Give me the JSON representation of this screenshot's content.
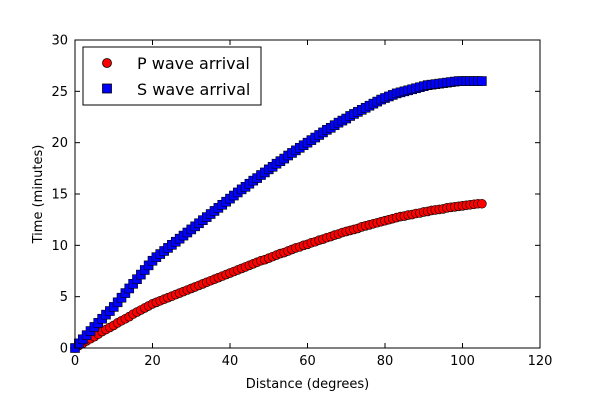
{
  "chart_data": {
    "type": "scatter",
    "title": "",
    "xlabel": "Distance (degrees)",
    "ylabel": "Time (minutes)",
    "xlim": [
      0,
      120
    ],
    "ylim": [
      0,
      30
    ],
    "xticks": [
      0,
      20,
      40,
      60,
      80,
      100,
      120
    ],
    "yticks": [
      0,
      5,
      10,
      15,
      20,
      25,
      30
    ],
    "xtick_labels": [
      "0",
      "20",
      "40",
      "60",
      "80",
      "100",
      "120"
    ],
    "ytick_labels": [
      "0",
      "5",
      "10",
      "15",
      "20",
      "25",
      "30"
    ],
    "grid": false,
    "legend_position": "top-left",
    "series": [
      {
        "name": "P wave arrival",
        "marker": "circle",
        "color": "#ff0000",
        "x": [
          0,
          1,
          2,
          3,
          4,
          5,
          6,
          7,
          8,
          9,
          10,
          11,
          12,
          13,
          14,
          15,
          16,
          17,
          18,
          19,
          20,
          21,
          22,
          23,
          24,
          25,
          26,
          27,
          28,
          29,
          30,
          31,
          32,
          33,
          34,
          35,
          36,
          37,
          38,
          39,
          40,
          41,
          42,
          43,
          44,
          45,
          46,
          47,
          48,
          49,
          50,
          51,
          52,
          53,
          54,
          55,
          56,
          57,
          58,
          59,
          60,
          61,
          62,
          63,
          64,
          65,
          66,
          67,
          68,
          69,
          70,
          71,
          72,
          73,
          74,
          75,
          76,
          77,
          78,
          79,
          80,
          81,
          82,
          83,
          84,
          85,
          86,
          87,
          88,
          89,
          90,
          91,
          92,
          93,
          94,
          95,
          96,
          97,
          98,
          99,
          100,
          101,
          102,
          103,
          104,
          105
        ],
        "y": [
          0.0,
          0.25,
          0.45,
          0.7,
          0.9,
          1.1,
          1.35,
          1.6,
          1.8,
          2.0,
          2.2,
          2.45,
          2.65,
          2.85,
          3.05,
          3.3,
          3.5,
          3.7,
          3.9,
          4.1,
          4.3,
          4.45,
          4.6,
          4.75,
          4.9,
          5.05,
          5.2,
          5.35,
          5.5,
          5.65,
          5.8,
          5.95,
          6.1,
          6.25,
          6.4,
          6.55,
          6.7,
          6.85,
          7.0,
          7.15,
          7.3,
          7.45,
          7.6,
          7.75,
          7.9,
          8.05,
          8.2,
          8.35,
          8.5,
          8.6,
          8.75,
          8.9,
          9.05,
          9.2,
          9.3,
          9.45,
          9.6,
          9.75,
          9.85,
          10.0,
          10.1,
          10.25,
          10.35,
          10.5,
          10.6,
          10.75,
          10.85,
          11.0,
          11.1,
          11.25,
          11.35,
          11.45,
          11.55,
          11.65,
          11.8,
          11.9,
          12.0,
          12.1,
          12.2,
          12.3,
          12.4,
          12.5,
          12.6,
          12.7,
          12.8,
          12.85,
          12.95,
          13.0,
          13.1,
          13.15,
          13.25,
          13.3,
          13.4,
          13.45,
          13.5,
          13.55,
          13.65,
          13.7,
          13.75,
          13.8,
          13.85,
          13.9,
          13.95,
          14.0,
          14.05,
          14.05
        ]
      },
      {
        "name": "S wave arrival",
        "marker": "square",
        "color": "#0000ff",
        "x": [
          0,
          1,
          2,
          3,
          4,
          5,
          6,
          7,
          8,
          9,
          10,
          11,
          12,
          13,
          14,
          15,
          16,
          17,
          18,
          19,
          20,
          21,
          22,
          23,
          24,
          25,
          26,
          27,
          28,
          29,
          30,
          31,
          32,
          33,
          34,
          35,
          36,
          37,
          38,
          39,
          40,
          41,
          42,
          43,
          44,
          45,
          46,
          47,
          48,
          49,
          50,
          51,
          52,
          53,
          54,
          55,
          56,
          57,
          58,
          59,
          60,
          61,
          62,
          63,
          64,
          65,
          66,
          67,
          68,
          69,
          70,
          71,
          72,
          73,
          74,
          75,
          76,
          77,
          78,
          79,
          80,
          81,
          82,
          83,
          84,
          85,
          86,
          87,
          88,
          89,
          90,
          91,
          92,
          93,
          94,
          95,
          96,
          97,
          98,
          99,
          100,
          101,
          102,
          103,
          104,
          105
        ],
        "y": [
          0.0,
          0.45,
          0.85,
          1.25,
          1.65,
          2.05,
          2.45,
          2.85,
          3.25,
          3.6,
          4.0,
          4.45,
          4.9,
          5.35,
          5.8,
          6.25,
          6.7,
          7.15,
          7.6,
          8.05,
          8.5,
          8.85,
          9.15,
          9.45,
          9.75,
          10.05,
          10.35,
          10.65,
          10.95,
          11.25,
          11.55,
          11.85,
          12.15,
          12.45,
          12.75,
          13.05,
          13.35,
          13.65,
          13.95,
          14.25,
          14.55,
          14.85,
          15.15,
          15.45,
          15.7,
          16.0,
          16.3,
          16.55,
          16.85,
          17.1,
          17.4,
          17.65,
          17.95,
          18.2,
          18.45,
          18.75,
          19.0,
          19.25,
          19.5,
          19.75,
          20.0,
          20.25,
          20.5,
          20.75,
          21.0,
          21.25,
          21.45,
          21.7,
          21.95,
          22.15,
          22.35,
          22.6,
          22.8,
          23.0,
          23.2,
          23.4,
          23.6,
          23.8,
          24.0,
          24.2,
          24.35,
          24.5,
          24.65,
          24.8,
          24.9,
          25.0,
          25.1,
          25.2,
          25.3,
          25.4,
          25.5,
          25.6,
          25.65,
          25.7,
          25.75,
          25.8,
          25.85,
          25.9,
          25.95,
          26.0,
          26.0,
          26.0,
          26.0,
          26.0,
          26.0,
          26.0
        ]
      }
    ]
  }
}
